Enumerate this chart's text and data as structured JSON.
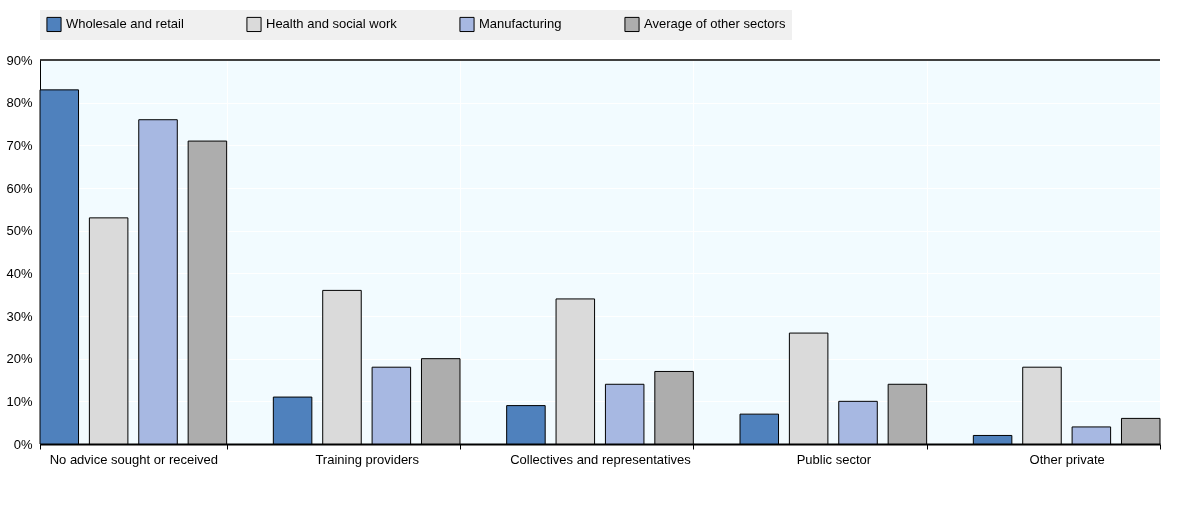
{
  "chart_data": {
    "type": "bar",
    "categories": [
      "No advice sought or received",
      "Training providers",
      "Collectives and representatives",
      "Public sector",
      "Other private"
    ],
    "series": [
      {
        "name": "Wholesale and retail",
        "color": "#4f81bd",
        "values": [
          83,
          11,
          9,
          7,
          2
        ]
      },
      {
        "name": "Health and social work",
        "color": "#dadada",
        "values": [
          53,
          36,
          34,
          26,
          18
        ]
      },
      {
        "name": "Manufacturing",
        "color": "#a7b8e2",
        "values": [
          76,
          18,
          14,
          10,
          4
        ]
      },
      {
        "name": "Average of other sectors",
        "color": "#adadad",
        "values": [
          71,
          20,
          17,
          14,
          6
        ]
      }
    ],
    "ylim": [
      0,
      90
    ],
    "yticks": [
      {
        "value": 0,
        "label": "0%"
      },
      {
        "value": 10,
        "label": "10%"
      },
      {
        "value": 20,
        "label": "20%"
      },
      {
        "value": 30,
        "label": "30%"
      },
      {
        "value": 40,
        "label": "40%"
      },
      {
        "value": 50,
        "label": "50%"
      },
      {
        "value": 60,
        "label": "60%"
      },
      {
        "value": 70,
        "label": "70%"
      },
      {
        "value": 80,
        "label": "80%"
      },
      {
        "value": 90,
        "label": "90%"
      }
    ],
    "grid": true,
    "legend": "top"
  }
}
